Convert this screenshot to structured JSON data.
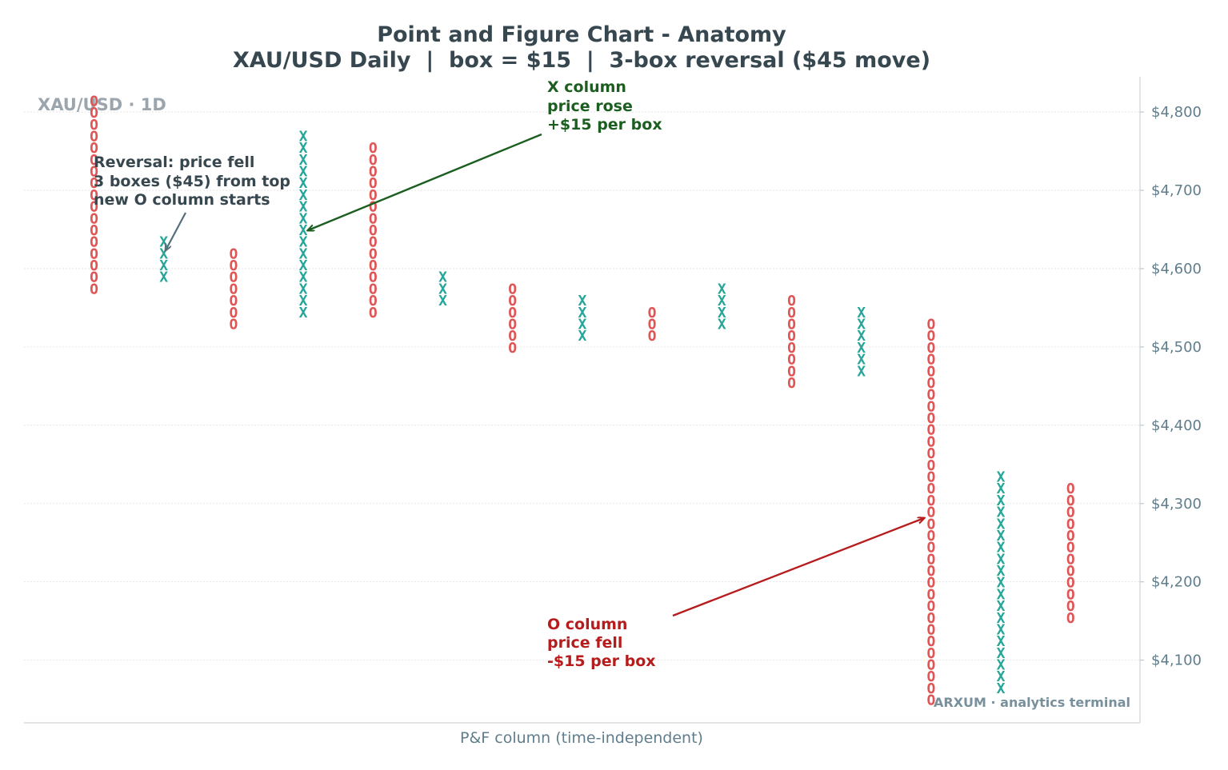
{
  "chart_data": {
    "type": "point-and-figure",
    "title": "Point and Figure Chart - Anatomy",
    "subtitle": "XAU/USD Daily  |  box = $15  |  3-box reversal ($45 move)",
    "xlabel": "P&F column (time-independent)",
    "ylabel": "",
    "ylim": [
      4020,
      4845
    ],
    "yticks": [
      4100,
      4200,
      4300,
      4400,
      4500,
      4600,
      4700,
      4800
    ],
    "ytick_labels": [
      "$4,100",
      "$4,200",
      "$4,300",
      "$4,400",
      "$4,500",
      "$4,600",
      "$4,700",
      "$4,800"
    ],
    "box_size": 15,
    "reversal_boxes": 3,
    "grid": true,
    "y_axis_side": "right",
    "colors": {
      "X": "#26a69a",
      "O": "#e05555",
      "text": "#37474f",
      "green_ann": "#1b5e20",
      "red_ann": "#b71c1c",
      "grid": "#e0e0e0"
    },
    "columns": [
      {
        "type": "O",
        "top": 4815,
        "bottom": 4575
      },
      {
        "type": "X",
        "bottom": 4590,
        "top": 4635
      },
      {
        "type": "O",
        "top": 4620,
        "bottom": 4530
      },
      {
        "type": "X",
        "bottom": 4545,
        "top": 4770
      },
      {
        "type": "O",
        "top": 4755,
        "bottom": 4545
      },
      {
        "type": "X",
        "bottom": 4560,
        "top": 4590
      },
      {
        "type": "O",
        "top": 4575,
        "bottom": 4500
      },
      {
        "type": "X",
        "bottom": 4515,
        "top": 4560
      },
      {
        "type": "O",
        "top": 4545,
        "bottom": 4515
      },
      {
        "type": "X",
        "bottom": 4530,
        "top": 4575
      },
      {
        "type": "O",
        "top": 4560,
        "bottom": 4455
      },
      {
        "type": "X",
        "bottom": 4470,
        "top": 4545
      },
      {
        "type": "O",
        "top": 4530,
        "bottom": 4050
      },
      {
        "type": "X",
        "bottom": 4065,
        "top": 4335
      },
      {
        "type": "O",
        "top": 4320,
        "bottom": 4155
      }
    ],
    "annotations": [
      {
        "lines": [
          "Reversal: price fell",
          "3 boxes ($45) from top",
          "new O column starts"
        ],
        "color": "#37474f",
        "arrow_color": "#546e7a"
      },
      {
        "lines": [
          "X column",
          "price rose",
          "+$15 per box"
        ],
        "color": "#1b5e20",
        "arrow_color": "#1b5e20"
      },
      {
        "lines": [
          "O column",
          "price fell",
          "-$15 per box"
        ],
        "color": "#b71c1c",
        "arrow_color": "#b71c1c"
      }
    ],
    "watermark": "XAU/USD · 1D",
    "brand": "ARXUM · analytics terminal"
  }
}
